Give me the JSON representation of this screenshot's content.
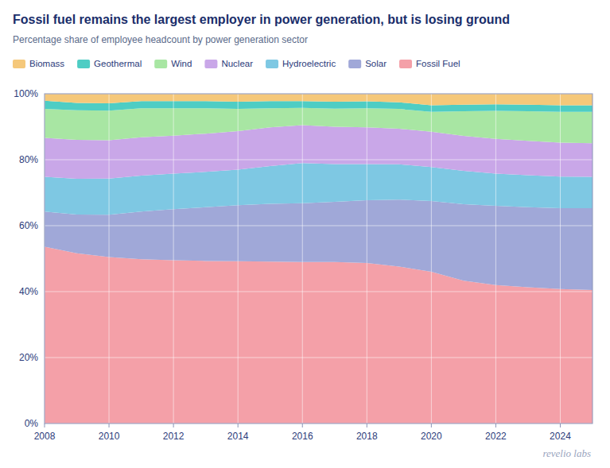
{
  "chart_data": {
    "type": "area",
    "stacked": true,
    "title": "Fossil fuel remains the largest employer in power generation, but is losing ground",
    "subtitle": "Percentage share of employee headcount by power generation sector",
    "annotations": [
      "revelio labs"
    ],
    "x": [
      2008,
      2009,
      2010,
      2011,
      2012,
      2013,
      2014,
      2015,
      2016,
      2017,
      2018,
      2019,
      2020,
      2021,
      2022,
      2023,
      2024,
      2025
    ],
    "series": [
      {
        "name": "Fossil Fuel",
        "color": "#f4a0a8",
        "values": [
          0.536,
          0.516,
          0.505,
          0.498,
          0.495,
          0.493,
          0.492,
          0.491,
          0.49,
          0.49,
          0.487,
          0.476,
          0.46,
          0.433,
          0.42,
          0.413,
          0.408,
          0.405
        ]
      },
      {
        "name": "Solar",
        "color": "#a0a8d8",
        "values": [
          0.107,
          0.118,
          0.128,
          0.145,
          0.155,
          0.163,
          0.17,
          0.175,
          0.178,
          0.182,
          0.19,
          0.203,
          0.215,
          0.232,
          0.24,
          0.243,
          0.245,
          0.248
        ]
      },
      {
        "name": "Hydroelectric",
        "color": "#7ec8e3",
        "values": [
          0.105,
          0.108,
          0.11,
          0.109,
          0.108,
          0.107,
          0.108,
          0.115,
          0.122,
          0.115,
          0.11,
          0.107,
          0.103,
          0.101,
          0.098,
          0.097,
          0.096,
          0.095
        ]
      },
      {
        "name": "Nuclear",
        "color": "#c9a7e8",
        "values": [
          0.118,
          0.118,
          0.116,
          0.116,
          0.115,
          0.116,
          0.117,
          0.117,
          0.115,
          0.113,
          0.111,
          0.108,
          0.107,
          0.106,
          0.105,
          0.104,
          0.103,
          0.102
        ]
      },
      {
        "name": "Wind",
        "color": "#a8e6a3",
        "values": [
          0.088,
          0.09,
          0.09,
          0.088,
          0.083,
          0.077,
          0.067,
          0.058,
          0.052,
          0.055,
          0.058,
          0.06,
          0.06,
          0.075,
          0.085,
          0.09,
          0.093,
          0.095
        ]
      },
      {
        "name": "Geothermal",
        "color": "#4ecdc4",
        "values": [
          0.025,
          0.022,
          0.022,
          0.022,
          0.022,
          0.022,
          0.022,
          0.022,
          0.021,
          0.021,
          0.021,
          0.02,
          0.02,
          0.02,
          0.02,
          0.02,
          0.02,
          0.02
        ]
      },
      {
        "name": "Biomass",
        "color": "#f5c87a",
        "values": [
          0.021,
          0.028,
          0.029,
          0.022,
          0.022,
          0.022,
          0.024,
          0.022,
          0.022,
          0.024,
          0.023,
          0.026,
          0.035,
          0.033,
          0.032,
          0.033,
          0.035,
          0.035
        ]
      }
    ],
    "xlim": [
      2008,
      2025
    ],
    "xticks": [
      2008,
      2010,
      2012,
      2014,
      2016,
      2018,
      2020,
      2022,
      2024
    ],
    "ylim": [
      0,
      1
    ],
    "yticks": [
      {
        "value": 0,
        "label": "0%"
      },
      {
        "value": 0.2,
        "label": "20%"
      },
      {
        "value": 0.4,
        "label": "40%"
      },
      {
        "value": 0.6,
        "label": "60%"
      },
      {
        "value": 0.8,
        "label": "80%"
      },
      {
        "value": 1,
        "label": "100%"
      }
    ],
    "grid": true,
    "legend": "top"
  }
}
